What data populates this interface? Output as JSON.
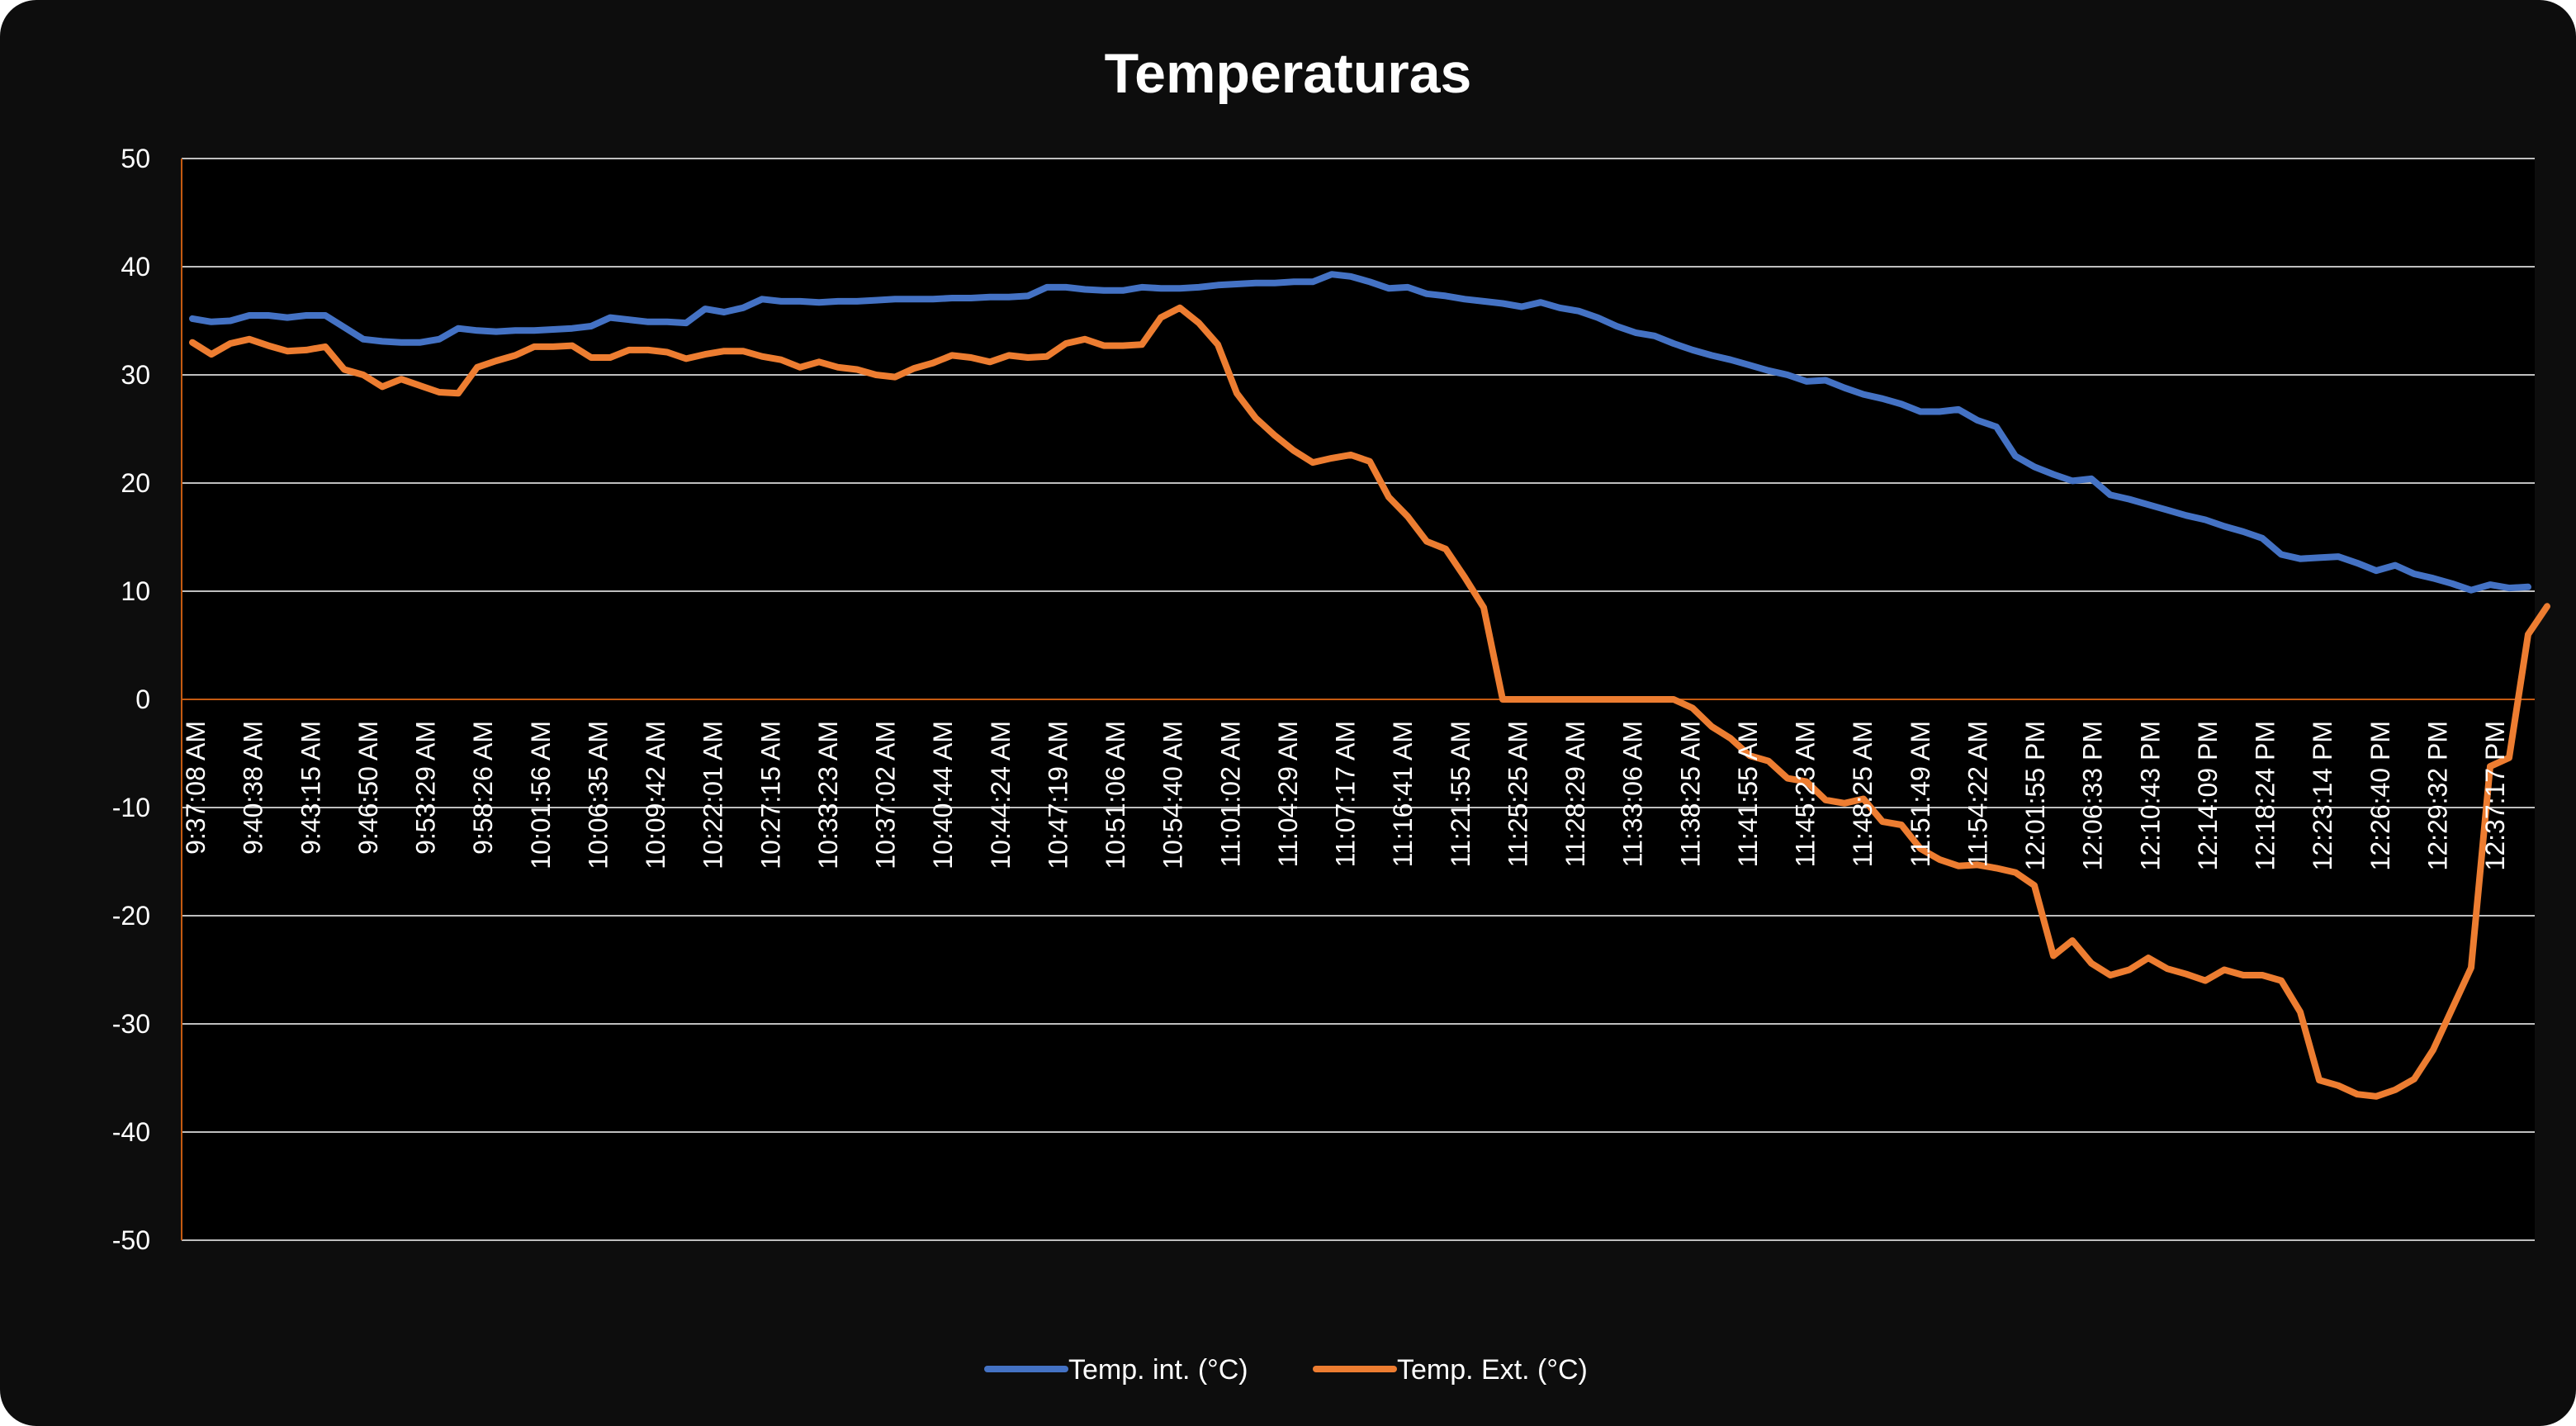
{
  "chart_data": {
    "type": "line",
    "title": "Temperaturas",
    "xlabel": "",
    "ylabel": "",
    "ylim": [
      -50,
      50
    ],
    "yticks": [
      50,
      40,
      30,
      20,
      10,
      0,
      -10,
      -20,
      -30,
      -40,
      -50
    ],
    "grid": true,
    "legend_position": "bottom",
    "colors": {
      "background": "#000000",
      "frame": "#0d0d0d",
      "grid": "#bfbfbf",
      "axis": "#c55a11"
    },
    "x_tick_labels": [
      "9:37:08 AM",
      "9:40:38 AM",
      "9:43:15 AM",
      "9:46:50 AM",
      "9:53:29 AM",
      "9:58:26 AM",
      "10:01:56 AM",
      "10:06:35 AM",
      "10:09:42 AM",
      "10:22:01 AM",
      "10:27:15 AM",
      "10:33:23 AM",
      "10:37:02 AM",
      "10:40:44 AM",
      "10:44:24 AM",
      "10:47:19 AM",
      "10:51:06 AM",
      "10:54:40 AM",
      "11:01:02 AM",
      "11:04:29 AM",
      "11:07:17 AM",
      "11:16:41 AM",
      "11:21:55 AM",
      "11:25:25 AM",
      "11:28:29 AM",
      "11:33:06 AM",
      "11:38:25 AM",
      "11:41:55 AM",
      "11:45:23 AM",
      "11:48:25 AM",
      "11:51:49 AM",
      "11:54:22 AM",
      "12:01:55 PM",
      "12:06:33 PM",
      "12:10:43 PM",
      "12:14:09 PM",
      "12:18:24 PM",
      "12:23:14 PM",
      "12:26:40 PM",
      "12:29:32 PM",
      "12:37:17 PM"
    ],
    "series": [
      {
        "name": "Temp. int. (°C)",
        "color": "#4472c4",
        "values": [
          35.2,
          34.9,
          35.0,
          35.5,
          35.5,
          35.3,
          35.5,
          35.5,
          34.4,
          33.3,
          33.1,
          33.0,
          33.0,
          33.3,
          34.3,
          34.1,
          34.0,
          34.1,
          34.1,
          34.2,
          34.3,
          34.5,
          35.3,
          35.1,
          34.9,
          34.9,
          34.8,
          36.1,
          35.8,
          36.2,
          37.0,
          36.8,
          36.8,
          36.7,
          36.8,
          36.8,
          36.9,
          37.0,
          37.0,
          37.0,
          37.1,
          37.1,
          37.2,
          37.2,
          37.3,
          38.1,
          38.1,
          37.9,
          37.8,
          37.8,
          38.1,
          38.0,
          38.0,
          38.1,
          38.3,
          38.4,
          38.5,
          38.5,
          38.6,
          38.6,
          39.3,
          39.1,
          38.6,
          38.0,
          38.1,
          37.5,
          37.3,
          37.0,
          36.8,
          36.6,
          36.3,
          36.7,
          36.2,
          35.9,
          35.3,
          34.5,
          33.9,
          33.6,
          32.9,
          32.3,
          31.8,
          31.4,
          30.9,
          30.4,
          30.0,
          29.4,
          29.5,
          28.8,
          28.2,
          27.8,
          27.3,
          26.6,
          26.6,
          26.8,
          25.8,
          25.2,
          22.5,
          21.5,
          20.8,
          20.2,
          20.4,
          18.9,
          18.5,
          18.0,
          17.5,
          17.0,
          16.6,
          16.0,
          15.5,
          14.9,
          13.4,
          13.0,
          13.1,
          13.2,
          12.6,
          11.9,
          12.4,
          11.6,
          11.2,
          10.7,
          10.1,
          10.6,
          10.3,
          10.4
        ]
      },
      {
        "name": "Temp. Ext. (°C)",
        "color": "#ed7d31",
        "values": [
          33.0,
          31.9,
          32.9,
          33.3,
          32.7,
          32.2,
          32.3,
          32.6,
          30.5,
          30.0,
          28.9,
          29.6,
          29.0,
          28.4,
          28.3,
          30.7,
          31.3,
          31.8,
          32.6,
          32.6,
          32.7,
          31.6,
          31.6,
          32.3,
          32.3,
          32.1,
          31.5,
          31.9,
          32.2,
          32.2,
          31.7,
          31.4,
          30.7,
          31.2,
          30.7,
          30.5,
          30.0,
          29.8,
          30.6,
          31.1,
          31.8,
          31.6,
          31.2,
          31.8,
          31.6,
          31.7,
          32.9,
          33.3,
          32.7,
          32.7,
          32.8,
          35.3,
          36.2,
          34.8,
          32.8,
          28.3,
          26.0,
          24.4,
          23.0,
          21.9,
          22.3,
          22.6,
          22.0,
          18.7,
          16.9,
          14.6,
          13.9,
          11.3,
          8.5,
          0,
          0,
          0,
          0,
          0,
          0,
          0,
          0,
          0,
          0,
          -0.8,
          -2.5,
          -3.6,
          -5.2,
          -5.7,
          -7.3,
          -7.6,
          -9.3,
          -9.6,
          -9.2,
          -11.3,
          -11.6,
          -13.8,
          -14.8,
          -15.4,
          -15.3,
          -15.6,
          -16.0,
          -17.2,
          -23.7,
          -22.3,
          -24.4,
          -25.5,
          -25.0,
          -23.9,
          -24.9,
          -25.4,
          -26.0,
          -25.0,
          -25.5,
          -25.5,
          -26.0,
          -28.9,
          -35.2,
          -35.7,
          -36.5,
          -36.7,
          -36.1,
          -35.1,
          -32.4,
          -28.6,
          -24.8,
          -6.2,
          -5.4,
          6.0,
          8.6
        ]
      }
    ]
  }
}
